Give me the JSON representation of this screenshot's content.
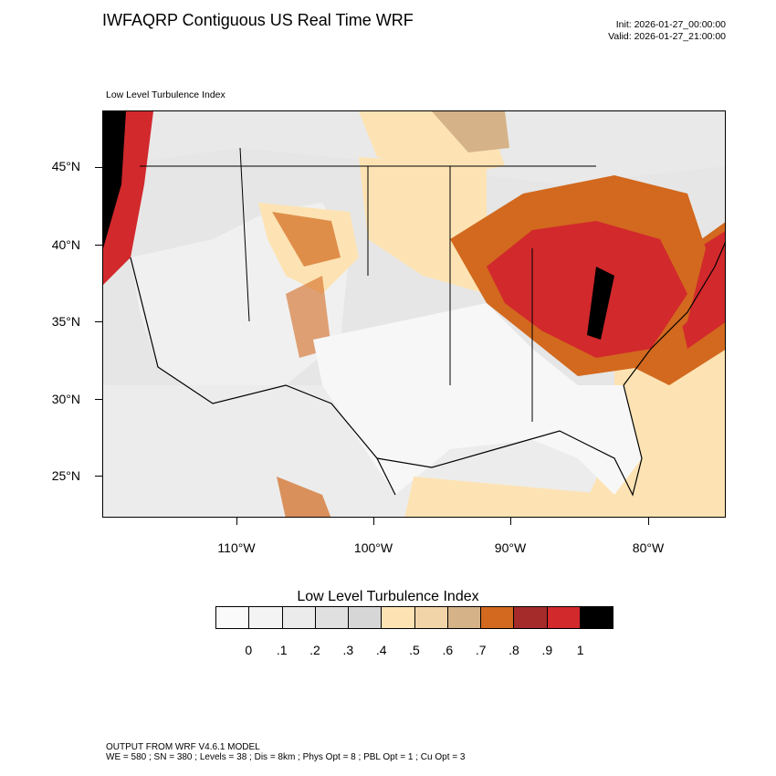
{
  "header": {
    "title": "IWFAQRP Contiguous US Real Time WRF",
    "init": "Init: 2026-01-27_00:00:00",
    "valid": "Valid: 2026-01-27_21:00:00"
  },
  "map": {
    "subtitle": "Low Level Turbulence Index",
    "lat_labels": [
      "45°N",
      "40°N",
      "35°N",
      "30°N",
      "25°N"
    ],
    "lon_labels": [
      "110°W",
      "100°W",
      "90°W",
      "80°W"
    ]
  },
  "colorbar": {
    "title": "Low Level Turbulence Index",
    "labels": [
      "0",
      ".1",
      ".2",
      ".3",
      ".4",
      ".5",
      ".6",
      ".7",
      ".8",
      ".9",
      "1"
    ],
    "colors": [
      "#fafafa",
      "#f3f3f3",
      "#ebebeb",
      "#e0e0e0",
      "#d6d6d6",
      "#fde3b3",
      "#f1d5a8",
      "#d5b287",
      "#d2691e",
      "#a52a2a",
      "#d2292d",
      "#000000"
    ]
  },
  "footer": {
    "line1": "OUTPUT FROM WRF V4.6.1 MODEL",
    "line2": "WE = 580 ; SN = 380 ; Levels = 38 ; Dis = 8km ; Phys Opt = 8 ; PBL Opt = 1 ; Cu Opt = 3"
  }
}
